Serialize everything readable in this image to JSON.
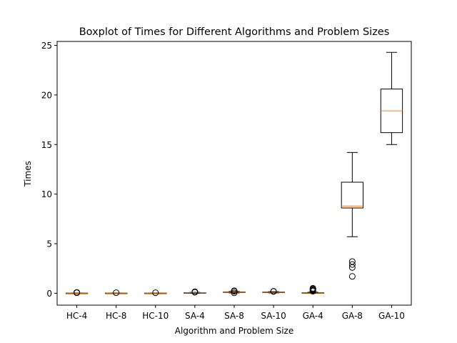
{
  "chart_data": {
    "type": "boxplot",
    "title": "Boxplot of Times for Different Algorithms and Problem Sizes",
    "xlabel": "Algorithm and Problem Size",
    "ylabel": "Times",
    "ylim": [
      -1.2,
      25.4
    ],
    "yticks": [
      0,
      5,
      10,
      15,
      20,
      25
    ],
    "grid": false,
    "categories": [
      "HC-4",
      "HC-8",
      "HC-10",
      "SA-4",
      "SA-8",
      "SA-10",
      "GA-4",
      "GA-8",
      "GA-10"
    ],
    "boxes": [
      {
        "whisker_low": 0.0,
        "q1": 0.0,
        "median": 0.01,
        "q3": 0.02,
        "whisker_high": 0.03,
        "outliers": [
          0.05,
          0.06,
          0.07,
          0.08
        ]
      },
      {
        "whisker_low": 0.0,
        "q1": 0.0,
        "median": 0.01,
        "q3": 0.02,
        "whisker_high": 0.03,
        "outliers": [
          0.05
        ]
      },
      {
        "whisker_low": 0.0,
        "q1": 0.0,
        "median": 0.01,
        "q3": 0.02,
        "whisker_high": 0.03,
        "outliers": [
          0.05
        ]
      },
      {
        "whisker_low": 0.0,
        "q1": 0.02,
        "median": 0.04,
        "q3": 0.06,
        "whisker_high": 0.09,
        "outliers": [
          0.1,
          0.13,
          0.15
        ]
      },
      {
        "whisker_low": 0.03,
        "q1": 0.08,
        "median": 0.1,
        "q3": 0.13,
        "whisker_high": 0.18,
        "outliers": [
          0.04,
          0.2,
          0.22,
          0.25
        ]
      },
      {
        "whisker_low": 0.03,
        "q1": 0.07,
        "median": 0.09,
        "q3": 0.12,
        "whisker_high": 0.16,
        "outliers": [
          0.18,
          0.2
        ]
      },
      {
        "whisker_low": 0.0,
        "q1": 0.0,
        "median": 0.02,
        "q3": 0.05,
        "whisker_high": 0.1,
        "outliers": [
          0.2,
          0.28,
          0.35,
          0.42,
          0.5
        ]
      },
      {
        "whisker_low": 5.7,
        "q1": 8.6,
        "median": 8.8,
        "q3": 11.2,
        "whisker_high": 14.2,
        "outliers": [
          1.7,
          2.6,
          2.9,
          3.2
        ]
      },
      {
        "whisker_low": 15.0,
        "q1": 16.2,
        "median": 18.4,
        "q3": 20.6,
        "whisker_high": 24.3,
        "outliers": []
      }
    ],
    "colors": {
      "box": "#000000",
      "median": "#ff7f0e",
      "outlier": "#000000"
    }
  }
}
